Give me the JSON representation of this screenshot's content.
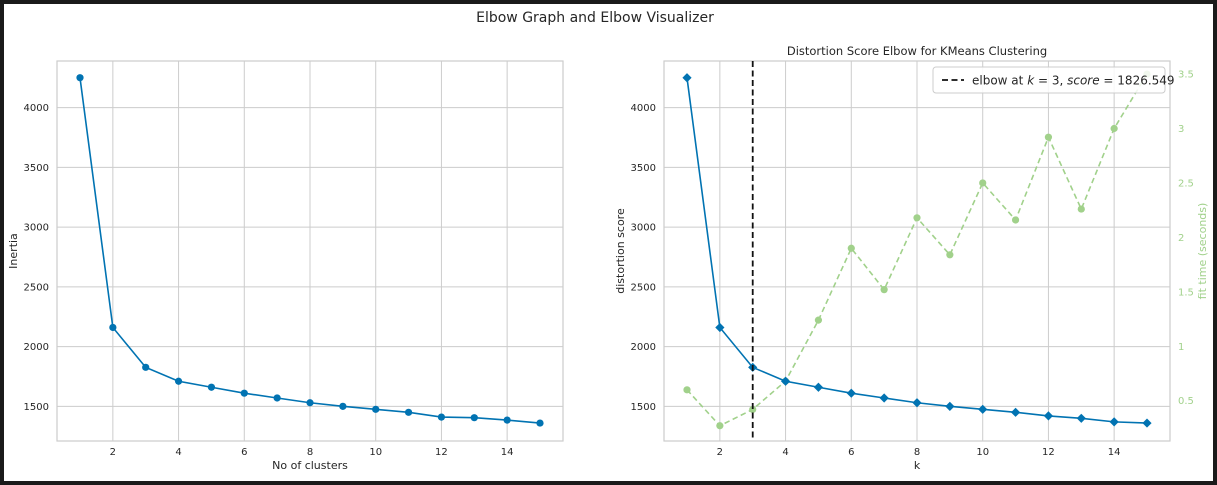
{
  "figure": {
    "suptitle": "Elbow Graph and Elbow Visualizer",
    "background": "#ffffff",
    "frame_color": "#1a1a1a"
  },
  "chart_data": [
    {
      "type": "line",
      "title": "",
      "xlabel": "No of clusters",
      "ylabel": "Inertia",
      "xlim": [
        0.3,
        15.7
      ],
      "ylim": [
        1210,
        4390
      ],
      "x_ticks": [
        2,
        4,
        6,
        8,
        10,
        12,
        14
      ],
      "y_ticks": [
        1500,
        2000,
        2500,
        3000,
        3500,
        4000
      ],
      "grid": true,
      "marker": "circle",
      "color": "#0173b2",
      "series": [
        {
          "x": [
            1,
            2,
            3,
            4,
            5,
            6,
            7,
            8,
            9,
            10,
            11,
            12,
            13,
            14,
            15
          ],
          "values": [
            4250,
            2160,
            1826.5,
            1710,
            1660,
            1610,
            1570,
            1530,
            1500,
            1475,
            1450,
            1410,
            1405,
            1385,
            1360
          ]
        }
      ]
    },
    {
      "type": "line",
      "title": "Distortion Score Elbow for KMeans Clustering",
      "xlabel": "k",
      "ylabel": "distortion score",
      "ylabel_right": "fit time (seconds)",
      "xlim": [
        0.3,
        15.7
      ],
      "ylim": [
        1210,
        4390
      ],
      "ylim_right": [
        0.13,
        3.62
      ],
      "x_ticks": [
        2,
        4,
        6,
        8,
        10,
        12,
        14
      ],
      "y_ticks": [
        1500,
        2000,
        2500,
        3000,
        3500,
        4000
      ],
      "y_ticks_right": [
        0.5,
        1.0,
        1.5,
        2.0,
        2.5,
        3.0,
        3.5
      ],
      "grid": true,
      "legend": {
        "position": "top-right",
        "prefix": "elbow at ",
        "k_var": "k",
        "k_eq": " = 3, ",
        "score_var": "score",
        "score_eq": " = 1826.549"
      },
      "elbow_k": 3,
      "series": [
        {
          "color": "#0173b2",
          "marker": "diamond",
          "axis": "left",
          "x": [
            1,
            2,
            3,
            4,
            5,
            6,
            7,
            8,
            9,
            10,
            11,
            12,
            13,
            14,
            15
          ],
          "values": [
            4250,
            2160,
            1826.5,
            1710,
            1660,
            1610,
            1570,
            1530,
            1500,
            1475,
            1450,
            1420,
            1400,
            1370,
            1360
          ]
        },
        {
          "color": "#a1d18b",
          "marker": "circle",
          "linestyle": "dashed",
          "axis": "right",
          "x": [
            1,
            2,
            3,
            4,
            5,
            6,
            7,
            8,
            9,
            10,
            11,
            12,
            13,
            14,
            15
          ],
          "values": [
            0.6,
            0.27,
            0.42,
            0.68,
            1.24,
            1.9,
            1.52,
            2.18,
            1.84,
            2.5,
            2.16,
            2.92,
            2.26,
            3.0,
            3.5
          ]
        }
      ]
    }
  ]
}
